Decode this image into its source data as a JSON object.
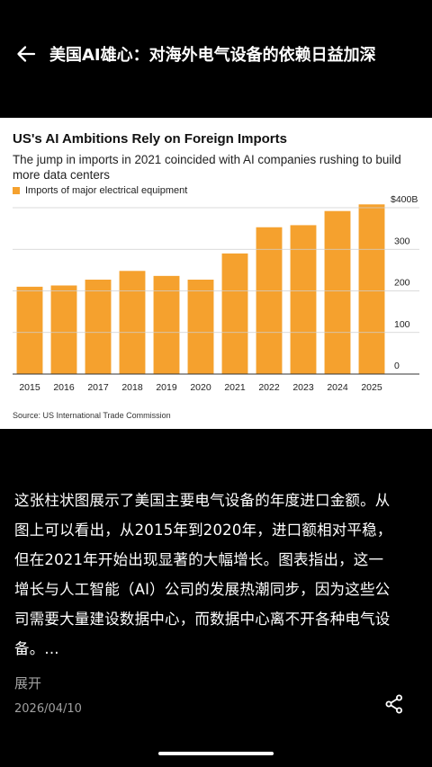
{
  "header": {
    "title": "美国AI雄心：对海外电气设备的依赖日益加深",
    "back_icon": "arrow-left-icon"
  },
  "chart": {
    "title": "US's AI Ambitions Rely on Foreign Imports",
    "subtitle": "The jump in imports in 2021 coincided with AI companies rushing to build more data centers",
    "legend_label": "Imports of major electrical equipment",
    "source": "Source: US International Trade Commission",
    "bar_color": "#f5a12e"
  },
  "chart_data": {
    "type": "bar",
    "title": "US's AI Ambitions Rely on Foreign Imports",
    "subtitle": "The jump in imports in 2021 coincided with AI companies rushing to build more data centers",
    "categories": [
      "2015",
      "2016",
      "2017",
      "2018",
      "2019",
      "2020",
      "2021",
      "2022",
      "2023",
      "2024",
      "2025"
    ],
    "series": [
      {
        "name": "Imports of major electrical equipment",
        "values": [
          210,
          213,
          227,
          248,
          236,
          227,
          290,
          353,
          358,
          392,
          408
        ]
      }
    ],
    "yticks": [
      {
        "value": 0,
        "label": "0"
      },
      {
        "value": 100,
        "label": "100"
      },
      {
        "value": 200,
        "label": "200"
      },
      {
        "value": 300,
        "label": "300"
      },
      {
        "value": 400,
        "label": "$400B"
      }
    ],
    "ylim": [
      0,
      400
    ],
    "grid": true,
    "legend_position": "top-left",
    "y_axis_side": "right",
    "source": "Source: US International Trade Commission"
  },
  "description": {
    "lines": [
      "这张柱状图展示了美国主要电气设备的年度进口金额。从",
      "图上可以看出，从2015年到2020年，进口额相对平稳，",
      "但在2021年开始出现显著的大幅增长。图表指出，这一",
      "增长与人工智能（AI）公司的发展热潮同步，因为这些公",
      "司需要大量建设数据中心，而数据中心离不开各种电气设",
      "备。..."
    ]
  },
  "footer": {
    "expand_label": "展开",
    "date": "2026/04/10",
    "share_icon": "share-icon"
  }
}
